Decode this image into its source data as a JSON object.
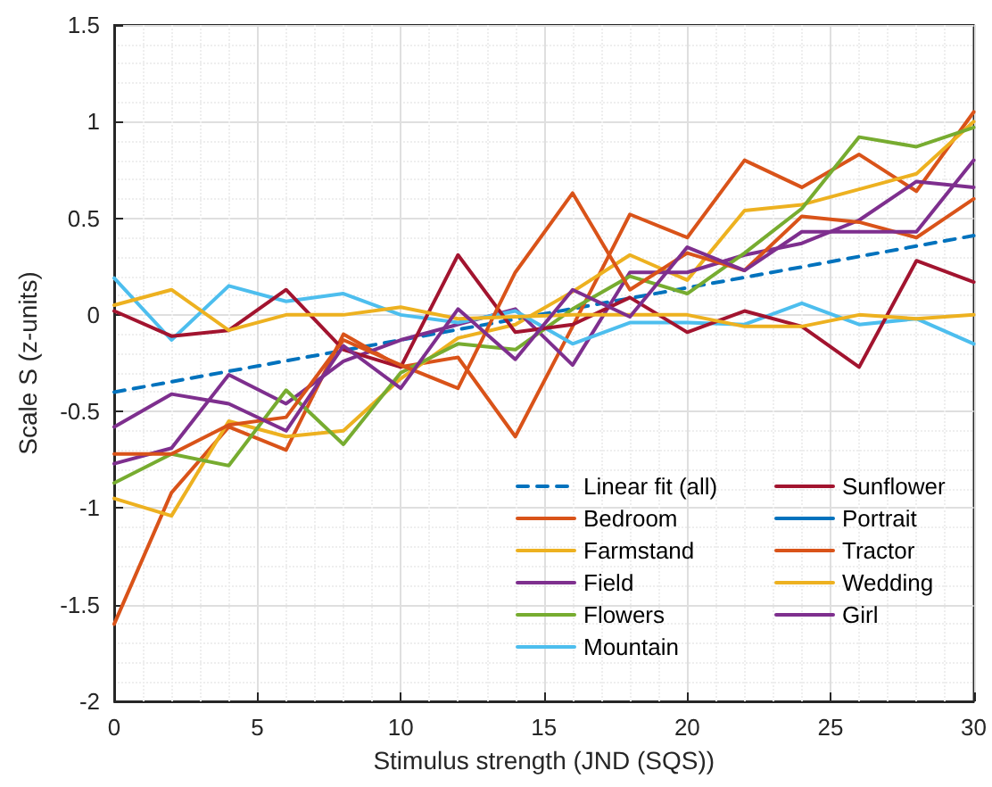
{
  "chart_data": {
    "type": "line",
    "xlabel": "Stimulus strength (JND (SQS))",
    "ylabel": "Scale S (z-units)",
    "x": [
      0,
      2,
      4,
      6,
      8,
      10,
      12,
      14,
      16,
      18,
      20,
      22,
      24,
      26,
      28,
      30
    ],
    "xlim": [
      0,
      30
    ],
    "xticks": [
      0,
      5,
      10,
      15,
      20,
      25,
      30
    ],
    "ylim": [
      -2,
      1.5
    ],
    "yticks": [
      -2,
      -1.5,
      -1,
      -0.5,
      0,
      0.5,
      1,
      1.5
    ],
    "grid": true,
    "legend": "bottom right",
    "marker": "none",
    "line_style": "solid",
    "series": [
      {
        "name": "Linear fit (all)",
        "color": "#0072bd",
        "line_style": "dashed",
        "x": [
          0,
          30
        ],
        "values": [
          -0.4,
          0.41
        ]
      },
      {
        "name": "Bedroom",
        "color": "#d95319",
        "values": [
          -1.6,
          -0.92,
          -0.58,
          -0.7,
          -0.1,
          -0.27,
          -0.22,
          -0.63,
          -0.06,
          0.52,
          0.4,
          0.8,
          0.66,
          0.83,
          0.64,
          1.05
        ]
      },
      {
        "name": "Farmstand",
        "color": "#edb120",
        "values": [
          -0.95,
          -1.04,
          -0.55,
          -0.63,
          -0.6,
          -0.33,
          -0.12,
          -0.05,
          0.12,
          0.31,
          0.18,
          0.54,
          0.57,
          0.65,
          0.73,
          1.0
        ]
      },
      {
        "name": "Field",
        "color": "#7e2f8e",
        "values": [
          -0.77,
          -0.69,
          -0.31,
          -0.46,
          -0.24,
          -0.13,
          -0.05,
          0.03,
          -0.26,
          0.22,
          0.22,
          0.31,
          0.37,
          0.49,
          0.69,
          0.66
        ]
      },
      {
        "name": "Flowers",
        "color": "#77ac30",
        "values": [
          -0.87,
          -0.72,
          -0.78,
          -0.39,
          -0.67,
          -0.3,
          -0.15,
          -0.18,
          0.03,
          0.2,
          0.11,
          0.32,
          0.55,
          0.92,
          0.87,
          0.97
        ]
      },
      {
        "name": "Mountain",
        "color": "#4dbeee",
        "values": [
          0.19,
          -0.13,
          0.15,
          0.07,
          0.11,
          0.0,
          -0.04,
          0.02,
          -0.15,
          -0.04,
          -0.04,
          -0.05,
          0.06,
          -0.05,
          -0.02,
          -0.15
        ]
      },
      {
        "name": "Sunflower",
        "color": "#a2142f",
        "values": [
          0.02,
          -0.11,
          -0.08,
          0.13,
          -0.18,
          -0.27,
          0.31,
          -0.09,
          -0.05,
          0.09,
          -0.09,
          0.02,
          -0.06,
          -0.27,
          0.28,
          0.17
        ]
      },
      {
        "name": "Portrait",
        "color": "#0072bd",
        "values": [
          null,
          null,
          null,
          null,
          null,
          null,
          null,
          null,
          null,
          null,
          null,
          null,
          null,
          null,
          null,
          null
        ]
      },
      {
        "name": "Tractor",
        "color": "#d95319",
        "values": [
          -0.72,
          -0.72,
          -0.57,
          -0.53,
          -0.13,
          -0.26,
          -0.38,
          0.22,
          0.63,
          0.13,
          0.32,
          0.23,
          0.51,
          0.48,
          0.4,
          0.6
        ]
      },
      {
        "name": "Wedding",
        "color": "#edb120",
        "values": [
          0.05,
          0.13,
          -0.08,
          0.0,
          0.0,
          0.04,
          -0.02,
          -0.01,
          0.0,
          0.0,
          0.0,
          -0.06,
          -0.06,
          0.0,
          -0.02,
          0.0
        ]
      },
      {
        "name": "Girl",
        "color": "#7e2f8e",
        "values": [
          -0.58,
          -0.41,
          -0.46,
          -0.6,
          -0.16,
          -0.38,
          0.03,
          -0.23,
          0.13,
          -0.01,
          0.35,
          0.23,
          0.43,
          0.43,
          0.43,
          0.8
        ]
      }
    ]
  }
}
